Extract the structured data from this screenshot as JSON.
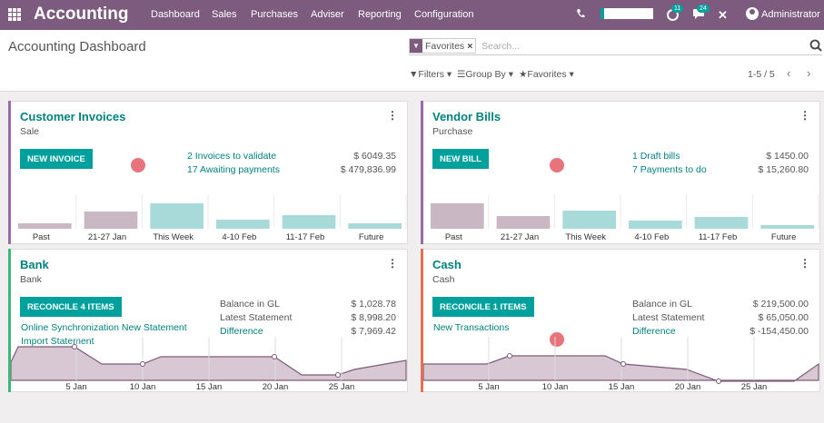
{
  "topbar": {
    "brand": "Accounting",
    "menu": [
      "Dashboard",
      "Sales",
      "Purchases",
      "Adviser",
      "Reporting",
      "Configuration"
    ],
    "activity_count": "11",
    "messages_count": "24",
    "user": "Administrator"
  },
  "control": {
    "page_title": "Accounting Dashboard",
    "facet_label": "Favorites",
    "search_placeholder": "Search...",
    "filters": "Filters",
    "group_by": "Group By",
    "favorites": "Favorites",
    "pager": "1-5 / 5"
  },
  "cards": [
    {
      "title": "Customer Invoices",
      "subtitle": "Sale",
      "button": "NEW INVOICE",
      "lines": [
        {
          "text": "2 Invoices to validate",
          "amount": "$ 6049.35"
        },
        {
          "text": "17 Awaiting payments",
          "amount": "$ 479,836.99"
        }
      ],
      "chart": {
        "type": "bar",
        "categories": [
          "Past",
          "21-27 Jan",
          "This Week",
          "4-10 Feb",
          "11-17 Feb",
          "Future"
        ],
        "values": [
          6,
          19,
          28,
          10,
          15,
          6
        ]
      }
    },
    {
      "title": "Vendor Bills",
      "subtitle": "Purchase",
      "button": "NEW BILL",
      "lines": [
        {
          "text": "1 Draft bills",
          "amount": "$ 1450.00"
        },
        {
          "text": "7 Payments to do",
          "amount": "$ 15,260.80"
        }
      ],
      "chart": {
        "type": "bar",
        "categories": [
          "Past",
          "21-27 Jan",
          "This Week",
          "4-10 Feb",
          "11-17 Feb",
          "Future"
        ],
        "values": [
          28,
          14,
          20,
          9,
          13,
          4
        ]
      }
    },
    {
      "title": "Bank",
      "subtitle": "Bank",
      "button": "RECONCILE 4 ITEMS",
      "links": [
        "Online Synchronization New Statement",
        "Import Statement"
      ],
      "balance": [
        {
          "label": "Balance in GL",
          "amount": "$ 1,028.78",
          "is_link": false
        },
        {
          "label": "Latest Statement",
          "amount": "$ 8,998.20",
          "is_link": false
        },
        {
          "label": "Difference",
          "amount": "$ 7,969.42",
          "is_link": true
        }
      ],
      "chart": {
        "type": "area",
        "ticks": [
          "5 Jan",
          "10 Jan",
          "15 Jan",
          "20 Jan",
          "25 Jan"
        ]
      }
    },
    {
      "title": "Cash",
      "subtitle": "Cash",
      "button": "RECONCILE 1 ITEMS",
      "links": [
        "New Transactions"
      ],
      "balance": [
        {
          "label": "Balance in GL",
          "amount": "$ 219,500.00",
          "is_link": false
        },
        {
          "label": "Latest Statement",
          "amount": "$ 65,050.00",
          "is_link": false
        },
        {
          "label": "Difference",
          "amount": "$ -154,450.00",
          "is_link": true
        }
      ],
      "chart": {
        "type": "area",
        "ticks": [
          "5 Jan",
          "10 Jan",
          "15 Jan",
          "20 Jan",
          "25 Jan"
        ]
      }
    }
  ]
}
